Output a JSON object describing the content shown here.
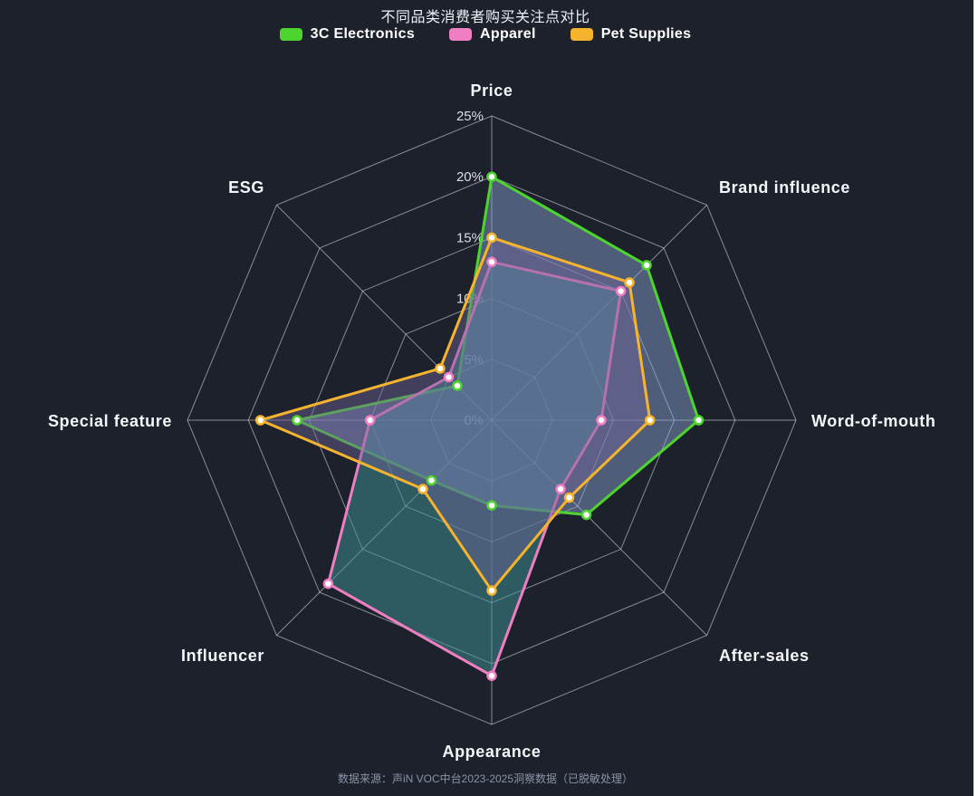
{
  "title": "不同品类消费者购买关注点对比",
  "footer": "数据来源：声iN VOC中台2023-2025洞察数据（已脱敏处理）",
  "legend": {
    "items": [
      {
        "label": "3C Electronics",
        "color": "#4dd42f"
      },
      {
        "label": "Apparel",
        "color": "#ef7ec2"
      },
      {
        "label": "Pet Supplies",
        "color": "#f6b42e"
      }
    ]
  },
  "chart_data": {
    "type": "radar",
    "title": "不同品类消费者购买关注点对比",
    "categories": [
      "Price",
      "Brand influence",
      "Word-of-mouth",
      "After-sales",
      "Appearance",
      "Influencer",
      "Special feature",
      "ESG"
    ],
    "axis_max": 25,
    "ring_step": 5,
    "tick_labels": [
      "0%",
      "5%",
      "10%",
      "15%",
      "20%",
      "25%"
    ],
    "legend_position": "top",
    "grid": "octagon rings, 5 levels",
    "style": {
      "background": "#1c212b",
      "grid_color": "rgba(223,228,238,0.55)",
      "tick_color": "#d9dfe9",
      "axis_name_color": "#f4f6f9",
      "marker_fill": "#ffffff"
    },
    "series": [
      {
        "name": "3C Electronics",
        "color": "#4dd42f",
        "area": "rgba(144,166,217,0.45)",
        "values": [
          20,
          18,
          17,
          11,
          7,
          7,
          16,
          4
        ]
      },
      {
        "name": "Apparel",
        "color": "#ef7ec2",
        "area": "rgba(63,146,148,0.52)",
        "values": [
          13,
          15,
          9,
          8,
          21,
          19,
          10,
          5
        ]
      },
      {
        "name": "Pet Supplies",
        "color": "#f6b42e",
        "area": "rgba(110,99,152,0.45)",
        "values": [
          15,
          16,
          13,
          9,
          14,
          8,
          19,
          6
        ]
      }
    ]
  }
}
